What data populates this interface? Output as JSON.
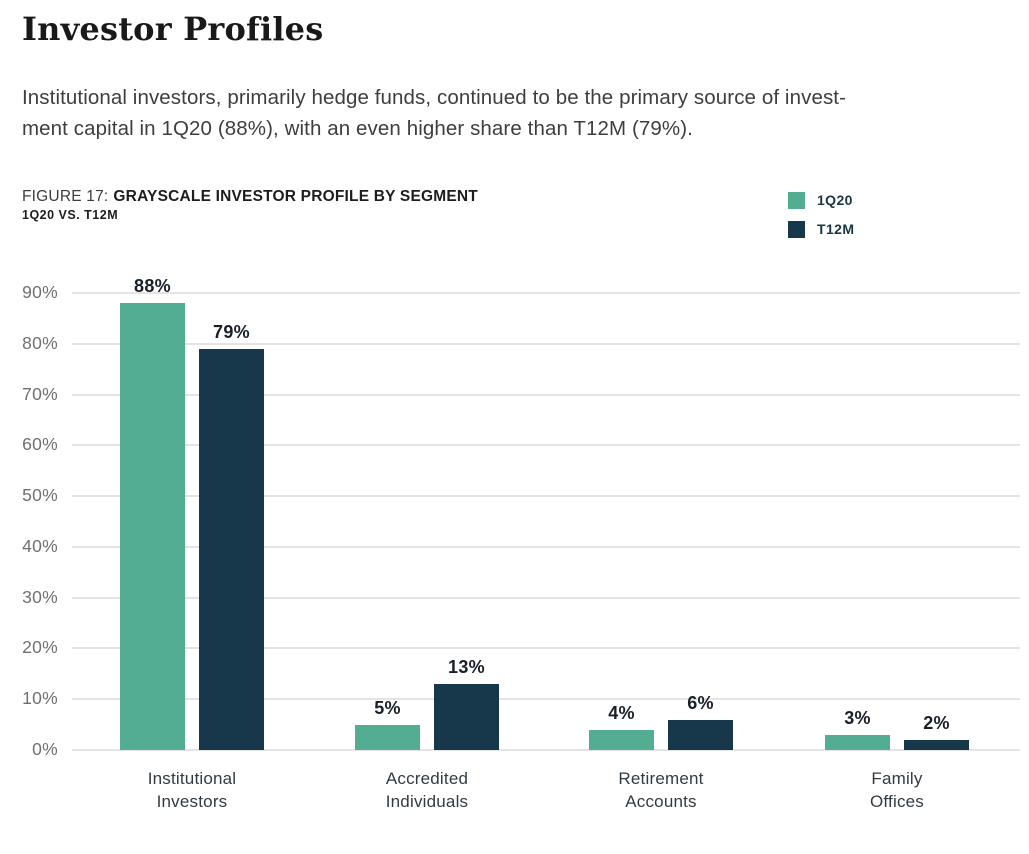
{
  "page": {
    "title": "Investor Profiles",
    "paragraph": "Institutional investors, primarily hedge funds, continued to be the primary source of invest-\nment capital in 1Q20 (88%), with an even higher share than T12M (79%)."
  },
  "figure": {
    "label": "FIGURE 17:",
    "title": "GRAYSCALE INVESTOR PROFILE BY SEGMENT",
    "subtitle": "1Q20 VS. T12M"
  },
  "legend": {
    "position": "top-right",
    "items": [
      {
        "label": "1Q20",
        "color": "#53ad93"
      },
      {
        "label": "T12M",
        "color": "#17384a"
      }
    ]
  },
  "chart_data": {
    "type": "bar",
    "title": "GRAYSCALE INVESTOR PROFILE BY SEGMENT",
    "subtitle": "1Q20 VS. T12M",
    "categories": [
      "Institutional\nInvestors",
      "Accredited\nIndividuals",
      "Retirement\nAccounts",
      "Family\nOffices"
    ],
    "series": [
      {
        "name": "1Q20",
        "color": "#53ad93",
        "values": [
          88,
          5,
          4,
          3
        ],
        "labels": [
          "88%",
          "5%",
          "4%",
          "3%"
        ]
      },
      {
        "name": "T12M",
        "color": "#17384a",
        "values": [
          79,
          13,
          6,
          2
        ],
        "labels": [
          "79%",
          "13%",
          "6%",
          "2%"
        ]
      }
    ],
    "xlabel": "",
    "ylabel": "",
    "ylim": [
      0,
      90
    ],
    "yticks": [
      0,
      10,
      20,
      30,
      40,
      50,
      60,
      70,
      80,
      90
    ],
    "ytick_labels": [
      "0%",
      "10%",
      "20%",
      "30%",
      "40%",
      "50%",
      "60%",
      "70%",
      "80%",
      "90%"
    ],
    "grid": true,
    "legend_position": "top-right",
    "colors": {
      "grid": "#e4e4e4",
      "axis_text": "#707070",
      "value_text": "#1a2029"
    }
  }
}
